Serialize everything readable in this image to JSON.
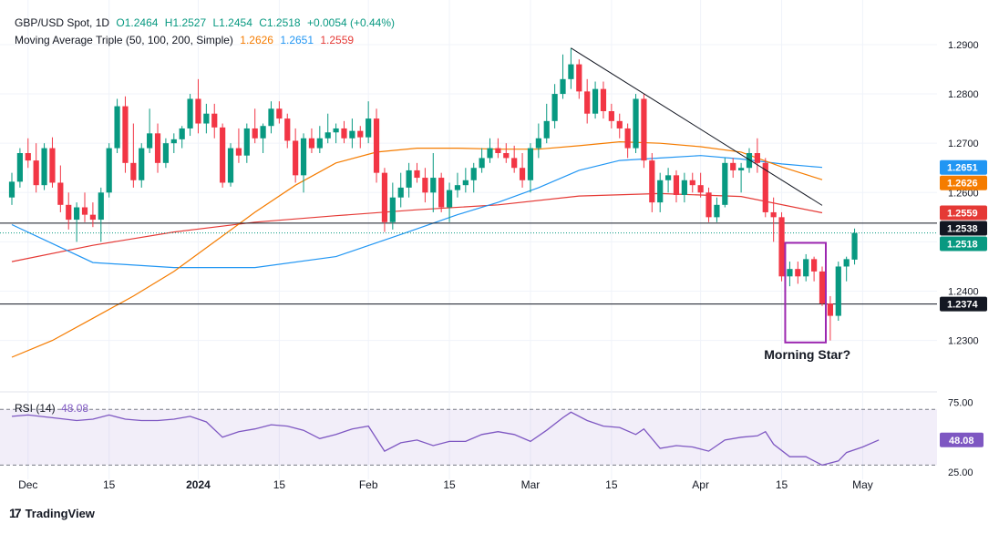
{
  "header": {
    "symbol": "GBP/USD Spot, 1D",
    "open": "O1.2464",
    "high": "H1.2527",
    "low": "L1.2454",
    "close": "C1.2518",
    "change": "+0.0054 (+0.44%)",
    "ma_label": "Moving Average Triple (50, 100, 200, Simple)",
    "ma50": "1.2626",
    "ma100": "1.2651",
    "ma200": "1.2559"
  },
  "rsi_legend": {
    "label": "RSI (14)",
    "value": "48.08"
  },
  "footer": {
    "brand": "TradingView",
    "logo": "17"
  },
  "colors": {
    "up": "#089981",
    "down": "#f23645",
    "ma50": "#f57c00",
    "ma100": "#2196f3",
    "ma200": "#e53935",
    "rsi": "#7e57c2",
    "box": "#9c27b0"
  },
  "chart_data": [
    {
      "type": "candlestick",
      "title": "",
      "ylim": [
        1.2255,
        1.2935
      ],
      "y_ticks": [
        "1.2900",
        "1.2800",
        "1.2700",
        "1.2600",
        "1.2500",
        "1.2400",
        "1.2300"
      ],
      "x_ticks": [
        "Dec",
        "15",
        "2024",
        "15",
        "Feb",
        "15",
        "Mar",
        "15",
        "Apr",
        "15",
        "May"
      ],
      "x_tick_index": [
        2,
        12,
        23,
        33,
        44,
        54,
        64,
        74,
        85,
        95,
        105
      ],
      "num_slots": 109,
      "price_labels": [
        {
          "value": 1.2651,
          "text": "1.2651",
          "color": "#2196f3"
        },
        {
          "value": 1.2626,
          "text": "1.2626",
          "color": "#f57c00"
        },
        {
          "value": 1.2559,
          "text": "1.2559",
          "color": "#e53935"
        },
        {
          "value": 1.2538,
          "text": "1.2538",
          "color": "#131722"
        },
        {
          "value": 1.2518,
          "text": "1.2518",
          "color": "#089981"
        },
        {
          "value": 1.2374,
          "text": "1.2374",
          "color": "#131722"
        }
      ],
      "horizontal_lines": [
        1.2538,
        1.2374
      ],
      "current_price_line": 1.2518,
      "trendline": [
        {
          "i": 69,
          "p": 1.2893
        },
        {
          "i": 100,
          "p": 1.2574
        }
      ],
      "annotation": {
        "text": "Morning Star?",
        "box_from": 96,
        "box_to": 100,
        "box_high": 1.2498,
        "box_low": 1.2296
      },
      "candles": [
        [
          1.259,
          1.264,
          1.2575,
          1.2622
        ],
        [
          1.2622,
          1.269,
          1.261,
          1.268
        ],
        [
          1.268,
          1.271,
          1.265,
          1.2665
        ],
        [
          1.2665,
          1.27,
          1.26,
          1.2615
        ],
        [
          1.2615,
          1.27,
          1.2605,
          1.269
        ],
        [
          1.269,
          1.2712,
          1.261,
          1.262
        ],
        [
          1.262,
          1.2655,
          1.256,
          1.2575
        ],
        [
          1.2575,
          1.26,
          1.2525,
          1.2545
        ],
        [
          1.2545,
          1.258,
          1.25,
          1.257
        ],
        [
          1.257,
          1.26,
          1.254,
          1.2555
        ],
        [
          1.2555,
          1.258,
          1.253,
          1.2545
        ],
        [
          1.2545,
          1.261,
          1.25,
          1.26
        ],
        [
          1.26,
          1.27,
          1.259,
          1.269
        ],
        [
          1.269,
          1.279,
          1.268,
          1.2775
        ],
        [
          1.2775,
          1.2795,
          1.264,
          1.266
        ],
        [
          1.266,
          1.274,
          1.261,
          1.2625
        ],
        [
          1.2625,
          1.27,
          1.261,
          1.269
        ],
        [
          1.269,
          1.277,
          1.268,
          1.272
        ],
        [
          1.272,
          1.274,
          1.264,
          1.266
        ],
        [
          1.266,
          1.271,
          1.265,
          1.27
        ],
        [
          1.27,
          1.272,
          1.268,
          1.2708
        ],
        [
          1.2708,
          1.2735,
          1.269,
          1.273
        ],
        [
          1.273,
          1.28,
          1.2715,
          1.279
        ],
        [
          1.279,
          1.283,
          1.272,
          1.274
        ],
        [
          1.274,
          1.278,
          1.272,
          1.276
        ],
        [
          1.276,
          1.278,
          1.271,
          1.2732
        ],
        [
          1.2732,
          1.274,
          1.261,
          1.262
        ],
        [
          1.262,
          1.27,
          1.2612,
          1.269
        ],
        [
          1.269,
          1.273,
          1.266,
          1.2675
        ],
        [
          1.2675,
          1.274,
          1.266,
          1.273
        ],
        [
          1.273,
          1.277,
          1.27,
          1.271
        ],
        [
          1.271,
          1.274,
          1.268,
          1.2735
        ],
        [
          1.2735,
          1.2785,
          1.272,
          1.277
        ],
        [
          1.277,
          1.2785,
          1.274,
          1.275
        ],
        [
          1.275,
          1.276,
          1.269,
          1.2705
        ],
        [
          1.2705,
          1.273,
          1.262,
          1.2635
        ],
        [
          1.2635,
          1.272,
          1.26,
          1.271
        ],
        [
          1.271,
          1.273,
          1.268,
          1.269
        ],
        [
          1.269,
          1.2735,
          1.268,
          1.271
        ],
        [
          1.271,
          1.276,
          1.27,
          1.2722
        ],
        [
          1.2722,
          1.274,
          1.27,
          1.273
        ],
        [
          1.273,
          1.2745,
          1.27,
          1.271
        ],
        [
          1.271,
          1.275,
          1.269,
          1.2725
        ],
        [
          1.2725,
          1.2735,
          1.269,
          1.2712
        ],
        [
          1.2712,
          1.2785,
          1.27,
          1.275
        ],
        [
          1.275,
          1.277,
          1.262,
          1.264
        ],
        [
          1.264,
          1.265,
          1.252,
          1.254
        ],
        [
          1.254,
          1.262,
          1.2525,
          1.259
        ],
        [
          1.259,
          1.264,
          1.257,
          1.261
        ],
        [
          1.261,
          1.266,
          1.259,
          1.2645
        ],
        [
          1.2645,
          1.266,
          1.262,
          1.263
        ],
        [
          1.263,
          1.265,
          1.258,
          1.26
        ],
        [
          1.26,
          1.268,
          1.256,
          1.263
        ],
        [
          1.263,
          1.264,
          1.256,
          1.257
        ],
        [
          1.257,
          1.262,
          1.254,
          1.2605
        ],
        [
          1.2605,
          1.264,
          1.259,
          1.2615
        ],
        [
          1.2615,
          1.265,
          1.26,
          1.2625
        ],
        [
          1.2625,
          1.266,
          1.26,
          1.265
        ],
        [
          1.265,
          1.269,
          1.264,
          1.267
        ],
        [
          1.267,
          1.271,
          1.266,
          1.269
        ],
        [
          1.269,
          1.271,
          1.267,
          1.268
        ],
        [
          1.268,
          1.27,
          1.266,
          1.267
        ],
        [
          1.267,
          1.2695,
          1.264,
          1.265
        ],
        [
          1.265,
          1.268,
          1.261,
          1.2625
        ],
        [
          1.2625,
          1.27,
          1.26,
          1.269
        ],
        [
          1.269,
          1.274,
          1.267,
          1.271
        ],
        [
          1.271,
          1.278,
          1.27,
          1.2745
        ],
        [
          1.2745,
          1.282,
          1.273,
          1.28
        ],
        [
          1.28,
          1.288,
          1.279,
          1.283
        ],
        [
          1.283,
          1.2893,
          1.281,
          1.286
        ],
        [
          1.286,
          1.287,
          1.279,
          1.2805
        ],
        [
          1.2805,
          1.283,
          1.274,
          1.276
        ],
        [
          1.276,
          1.2825,
          1.275,
          1.281
        ],
        [
          1.281,
          1.2825,
          1.275,
          1.2765
        ],
        [
          1.2765,
          1.278,
          1.273,
          1.2745
        ],
        [
          1.2745,
          1.276,
          1.271,
          1.273
        ],
        [
          1.273,
          1.274,
          1.267,
          1.269
        ],
        [
          1.269,
          1.28,
          1.268,
          1.279
        ],
        [
          1.279,
          1.28,
          1.265,
          1.2665
        ],
        [
          1.2665,
          1.268,
          1.256,
          1.258
        ],
        [
          1.258,
          1.264,
          1.256,
          1.2625
        ],
        [
          1.2625,
          1.265,
          1.26,
          1.2635
        ],
        [
          1.2635,
          1.2645,
          1.258,
          1.2595
        ],
        [
          1.2595,
          1.264,
          1.258,
          1.2625
        ],
        [
          1.2625,
          1.264,
          1.26,
          1.2615
        ],
        [
          1.2615,
          1.264,
          1.259,
          1.26
        ],
        [
          1.26,
          1.261,
          1.254,
          1.255
        ],
        [
          1.255,
          1.259,
          1.254,
          1.2575
        ],
        [
          1.2575,
          1.267,
          1.257,
          1.266
        ],
        [
          1.266,
          1.267,
          1.263,
          1.2645
        ],
        [
          1.2645,
          1.266,
          1.26,
          1.265
        ],
        [
          1.265,
          1.269,
          1.264,
          1.268
        ],
        [
          1.268,
          1.271,
          1.264,
          1.266
        ],
        [
          1.266,
          1.267,
          1.255,
          1.256
        ],
        [
          1.256,
          1.259,
          1.25,
          1.255
        ],
        [
          1.255,
          1.256,
          1.242,
          1.243
        ],
        [
          1.243,
          1.246,
          1.241,
          1.2445
        ],
        [
          1.2445,
          1.246,
          1.2415,
          1.243
        ],
        [
          1.243,
          1.2475,
          1.242,
          1.2465
        ],
        [
          1.2465,
          1.247,
          1.242,
          1.244
        ],
        [
          1.244,
          1.245,
          1.237,
          1.2375
        ],
        [
          1.2375,
          1.239,
          1.23,
          1.235
        ],
        [
          1.235,
          1.246,
          1.234,
          1.245
        ],
        [
          1.245,
          1.247,
          1.242,
          1.2465
        ],
        [
          1.2464,
          1.2527,
          1.2454,
          1.2518
        ]
      ],
      "ma50": [
        [
          0,
          1.2266
        ],
        [
          5,
          1.23
        ],
        [
          10,
          1.2345
        ],
        [
          15,
          1.239
        ],
        [
          20,
          1.244
        ],
        [
          25,
          1.25
        ],
        [
          30,
          1.256
        ],
        [
          35,
          1.2615
        ],
        [
          40,
          1.266
        ],
        [
          45,
          1.2682
        ],
        [
          50,
          1.269
        ],
        [
          55,
          1.269
        ],
        [
          60,
          1.2688
        ],
        [
          65,
          1.2688
        ],
        [
          70,
          1.2695
        ],
        [
          75,
          1.2703
        ],
        [
          80,
          1.27
        ],
        [
          85,
          1.2693
        ],
        [
          90,
          1.2682
        ],
        [
          95,
          1.2652
        ],
        [
          100,
          1.2626
        ]
      ],
      "ma100": [
        [
          0,
          1.2535
        ],
        [
          10,
          1.2458
        ],
        [
          20,
          1.2448
        ],
        [
          30,
          1.2448
        ],
        [
          40,
          1.247
        ],
        [
          48,
          1.2515
        ],
        [
          55,
          1.2555
        ],
        [
          60,
          1.258
        ],
        [
          65,
          1.261
        ],
        [
          70,
          1.2645
        ],
        [
          75,
          1.2665
        ],
        [
          80,
          1.267
        ],
        [
          85,
          1.2675
        ],
        [
          90,
          1.2668
        ],
        [
          95,
          1.2658
        ],
        [
          100,
          1.2651
        ]
      ],
      "ma200": [
        [
          0,
          1.246
        ],
        [
          10,
          1.2493
        ],
        [
          20,
          1.252
        ],
        [
          30,
          1.254
        ],
        [
          40,
          1.2553
        ],
        [
          50,
          1.2565
        ],
        [
          60,
          1.2575
        ],
        [
          70,
          1.2593
        ],
        [
          80,
          1.2598
        ],
        [
          90,
          1.2592
        ],
        [
          100,
          1.2559
        ]
      ]
    },
    {
      "type": "line",
      "title": "",
      "name": "RSI (14)",
      "ylim": [
        25,
        80
      ],
      "y_ticks": [
        "75.00",
        "25.00"
      ],
      "band": [
        30,
        70
      ],
      "last_label": "48.08",
      "values": [
        [
          0,
          65
        ],
        [
          2,
          66
        ],
        [
          5,
          64
        ],
        [
          8,
          62
        ],
        [
          10,
          63
        ],
        [
          12,
          66
        ],
        [
          14,
          63
        ],
        [
          16,
          62
        ],
        [
          18,
          62
        ],
        [
          20,
          63
        ],
        [
          22,
          65
        ],
        [
          24,
          61
        ],
        [
          26,
          50
        ],
        [
          28,
          54
        ],
        [
          30,
          56
        ],
        [
          32,
          59
        ],
        [
          34,
          58
        ],
        [
          36,
          55
        ],
        [
          38,
          49
        ],
        [
          40,
          52
        ],
        [
          42,
          56
        ],
        [
          44,
          58
        ],
        [
          46,
          40
        ],
        [
          48,
          46
        ],
        [
          50,
          48
        ],
        [
          52,
          44
        ],
        [
          54,
          47
        ],
        [
          56,
          47
        ],
        [
          58,
          52
        ],
        [
          60,
          54
        ],
        [
          62,
          52
        ],
        [
          64,
          47
        ],
        [
          66,
          55
        ],
        [
          68,
          64
        ],
        [
          69,
          68
        ],
        [
          71,
          62
        ],
        [
          73,
          58
        ],
        [
          75,
          57
        ],
        [
          77,
          52
        ],
        [
          78,
          56
        ],
        [
          80,
          42
        ],
        [
          82,
          44
        ],
        [
          84,
          43
        ],
        [
          86,
          40
        ],
        [
          88,
          48
        ],
        [
          90,
          50
        ],
        [
          92,
          51
        ],
        [
          93,
          54
        ],
        [
          94,
          45
        ],
        [
          96,
          36
        ],
        [
          98,
          36
        ],
        [
          100,
          30
        ],
        [
          102,
          33
        ],
        [
          103,
          39
        ],
        [
          105,
          43
        ],
        [
          107,
          48.08
        ]
      ]
    }
  ]
}
